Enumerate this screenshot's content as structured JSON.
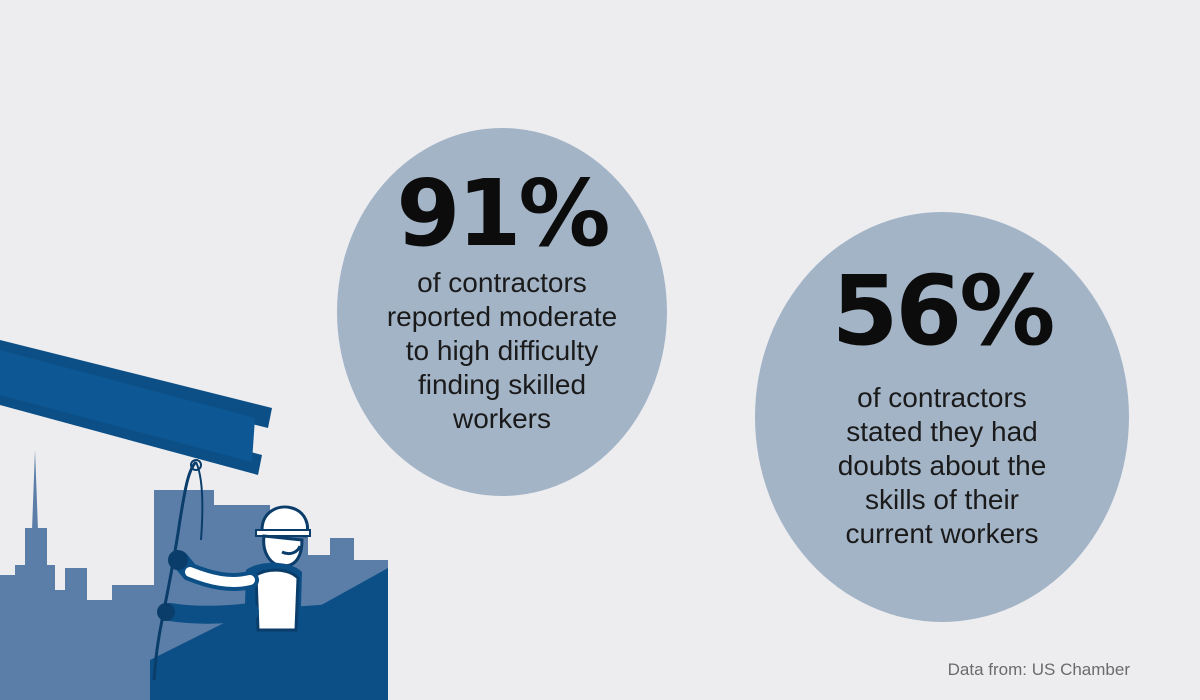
{
  "stats": [
    {
      "value": "91%",
      "caption": "of contractors\nreported moderate\nto high difficulty\nfinding skilled\nworkers"
    },
    {
      "value": "56%",
      "caption": "of contractors\nstated they had\ndoubts about the\nskills of their\ncurrent workers"
    }
  ],
  "source": "Data from: US Chamber",
  "colors": {
    "background": "#ededf0",
    "bubble": "#a3b4c7",
    "steel_blue": "#0b4f86",
    "skyline_light": "#5a7ea8",
    "skyline_dark": "#4a6f9a"
  },
  "illustration": {
    "subject": "construction-worker-guiding-steel-beam-icon"
  }
}
